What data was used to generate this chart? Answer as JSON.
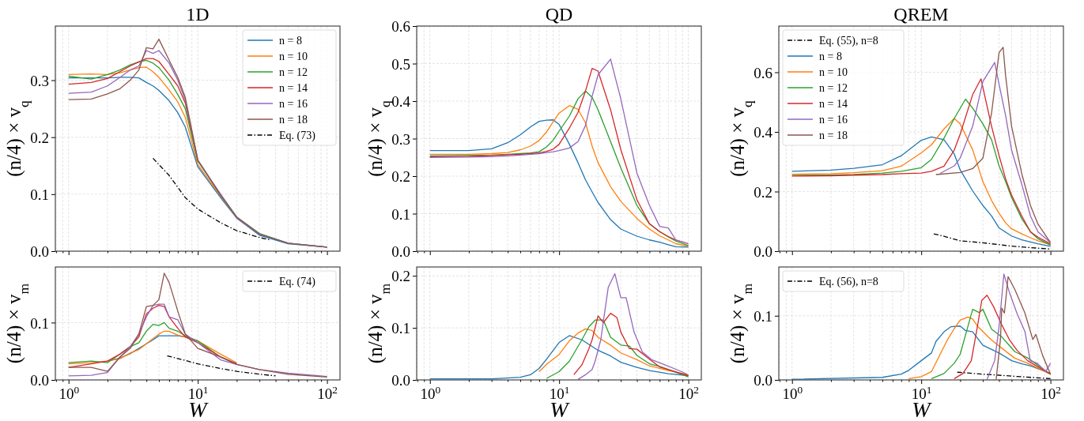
{
  "chart_data": [
    {
      "type": "line",
      "title": "1D",
      "ylabel": "(n/4) × v$_{q}$",
      "xlim": [
        0.79,
        126
      ],
      "log": "x",
      "xticks": [
        {
          "value": 1,
          "label": null
        },
        {
          "value": 10,
          "label": null
        },
        {
          "value": 100,
          "label": null
        }
      ],
      "ylim": [
        0,
        0.395
      ],
      "yticks": [
        {
          "value": 0,
          "label": "0.0"
        },
        {
          "value": 0.1,
          "label": "0.1"
        },
        {
          "value": 0.2,
          "label": "0.2"
        },
        {
          "value": 0.3,
          "label": "0.3"
        }
      ],
      "tick_labels": "y",
      "grid": true,
      "legend": "top right",
      "x": [
        1,
        1.5,
        2,
        2.5,
        3,
        3.5,
        4,
        4.5,
        5,
        6,
        7,
        8,
        10,
        15,
        20,
        30,
        50,
        100
      ],
      "series": [
        {
          "name": "n = 8",
          "color": "#1f77b4",
          "values": [
            0.304,
            0.304,
            0.304,
            0.305,
            0.305,
            0.304,
            0.296,
            0.29,
            0.282,
            0.264,
            0.243,
            0.218,
            0.148,
            0.094,
            0.058,
            0.028,
            0.013,
            0.007
          ]
        },
        {
          "name": "n = 10",
          "color": "#ff7f0e",
          "values": [
            0.31,
            0.311,
            0.31,
            0.313,
            0.318,
            0.322,
            0.323,
            0.315,
            0.305,
            0.283,
            0.262,
            0.235,
            0.152,
            0.097,
            0.059,
            null,
            null,
            null
          ]
        },
        {
          "name": "n = 12",
          "color": "#2ca02c",
          "values": [
            0.307,
            0.302,
            0.31,
            0.318,
            0.327,
            0.332,
            0.335,
            0.33,
            0.322,
            0.3,
            0.275,
            0.25,
            0.158,
            0.1,
            0.06,
            0.031,
            0.014,
            0.007
          ]
        },
        {
          "name": "n = 14",
          "color": "#d62728",
          "values": [
            0.293,
            0.296,
            0.303,
            0.315,
            0.325,
            0.332,
            0.338,
            0.338,
            0.333,
            0.31,
            0.29,
            0.26,
            0.16,
            null,
            null,
            null,
            null,
            null
          ]
        },
        {
          "name": "n = 16",
          "color": "#9467bd",
          "values": [
            0.277,
            0.279,
            0.29,
            0.305,
            0.318,
            0.325,
            0.352,
            0.347,
            0.352,
            0.33,
            0.3,
            0.265,
            0.16,
            0.1,
            0.058,
            0.03,
            0.014,
            0.007
          ]
        },
        {
          "name": "n = 18",
          "color": "#8c564b",
          "values": [
            0.266,
            0.267,
            0.276,
            0.285,
            0.3,
            0.318,
            0.357,
            0.355,
            0.372,
            0.335,
            0.305,
            0.27,
            0.16,
            0.098,
            0.06,
            0.03,
            0.014,
            0.007
          ]
        },
        {
          "name": "Eq. (73)",
          "color": "#000000",
          "line_style": "dashdot",
          "x": [
            4.5,
            6,
            8,
            10,
            15,
            20,
            30,
            36
          ],
          "values": [
            0.163,
            0.133,
            0.094,
            0.074,
            0.05,
            0.036,
            0.024,
            0.02
          ]
        }
      ]
    },
    {
      "type": "line",
      "title": "QD",
      "ylabel": "(n/4) × v$_{q}$",
      "xlim": [
        0.79,
        126
      ],
      "log": "x",
      "xticks": [
        {
          "value": 1,
          "label": null
        },
        {
          "value": 10,
          "label": null
        },
        {
          "value": 100,
          "label": null
        }
      ],
      "ylim": [
        0,
        0.6
      ],
      "yticks": [
        {
          "value": 0,
          "label": "0.0"
        },
        {
          "value": 0.1,
          "label": "0.1"
        },
        {
          "value": 0.2,
          "label": "0.2"
        },
        {
          "value": 0.3,
          "label": "0.3"
        },
        {
          "value": 0.4,
          "label": "0.4"
        },
        {
          "value": 0.5,
          "label": "0.5"
        },
        {
          "value": 0.6,
          "label": "0.6"
        }
      ],
      "tick_labels": "y",
      "grid": true,
      "x": [
        1,
        2,
        3,
        4,
        5,
        6,
        7,
        8,
        9,
        10,
        12,
        14,
        16,
        18,
        20,
        25,
        30,
        40,
        50,
        60,
        70,
        80,
        100
      ],
      "series": [
        {
          "color": "#1f77b4",
          "values": [
            0.268,
            0.268,
            0.273,
            0.289,
            0.31,
            0.331,
            0.346,
            0.349,
            0.35,
            0.338,
            0.285,
            0.236,
            0.19,
            0.158,
            0.13,
            0.084,
            0.059,
            0.04,
            0.03,
            0.024,
            0.017,
            0.012,
            0.011
          ]
        },
        {
          "color": "#ff7f0e",
          "values": [
            0.258,
            0.258,
            0.26,
            0.263,
            0.27,
            0.28,
            0.295,
            0.318,
            0.345,
            0.368,
            0.388,
            0.378,
            0.342,
            0.28,
            0.236,
            0.172,
            0.133,
            0.087,
            0.059,
            0.041,
            0.03,
            0.02,
            0.013
          ]
        },
        {
          "color": "#2ca02c",
          "values": [
            0.254,
            0.255,
            0.256,
            0.258,
            0.26,
            0.262,
            0.265,
            0.278,
            0.296,
            0.32,
            0.36,
            0.406,
            0.427,
            0.41,
            0.377,
            0.292,
            0.222,
            0.122,
            0.073,
            0.052,
            0.038,
            0.027,
            0.015
          ]
        },
        {
          "color": "#d62728",
          "values": [
            0.252,
            0.253,
            0.255,
            0.257,
            0.258,
            0.26,
            0.262,
            0.266,
            0.272,
            0.285,
            0.328,
            0.37,
            0.427,
            0.487,
            0.48,
            0.377,
            0.271,
            0.137,
            0.073,
            0.052,
            0.039,
            0.03,
            0.02
          ]
        },
        {
          "color": "#9467bd",
          "values": [
            0.25,
            0.251,
            0.252,
            0.254,
            0.256,
            0.258,
            0.26,
            0.263,
            0.265,
            0.268,
            0.275,
            0.292,
            0.335,
            0.413,
            0.47,
            0.512,
            0.406,
            0.208,
            0.122,
            0.066,
            0.062,
            0.03,
            0.02
          ]
        }
      ]
    },
    {
      "type": "line",
      "title": "QREM",
      "ylabel": "(n/4) × v$_{q}$",
      "xlim": [
        0.79,
        126
      ],
      "log": "x",
      "xticks": [
        {
          "value": 1,
          "label": null
        },
        {
          "value": 10,
          "label": null
        },
        {
          "value": 100,
          "label": null
        }
      ],
      "ylim": [
        0,
        0.755
      ],
      "yticks": [
        {
          "value": 0,
          "label": "0.0"
        },
        {
          "value": 0.2,
          "label": "0.2"
        },
        {
          "value": 0.4,
          "label": "0.4"
        },
        {
          "value": 0.6,
          "label": "0.6"
        }
      ],
      "tick_labels": "y",
      "grid": true,
      "legend": "top left",
      "series": [
        {
          "name": "Eq. (55), n=8",
          "color": "#000000",
          "line_style": "dashdot",
          "x": [
            12.5,
            15,
            20,
            30,
            50,
            70,
            100
          ],
          "values": [
            0.058,
            0.05,
            0.035,
            0.028,
            0.017,
            0.012,
            0.007
          ]
        },
        {
          "name": "n = 8",
          "color": "#1f77b4",
          "x": [
            1,
            2,
            3,
            5,
            7,
            10,
            12,
            15,
            18,
            20,
            25,
            30,
            35,
            40,
            50,
            60,
            70,
            80,
            100
          ],
          "values": [
            0.268,
            0.272,
            0.278,
            0.29,
            0.32,
            0.372,
            0.383,
            0.374,
            0.326,
            0.273,
            0.202,
            0.153,
            0.118,
            0.078,
            0.051,
            0.038,
            0.031,
            0.025,
            0.016
          ]
        },
        {
          "name": "n = 10",
          "color": "#ff7f0e",
          "x": [
            1,
            2,
            3,
            5,
            7,
            10,
            12,
            15,
            18,
            20,
            25,
            30,
            35,
            40,
            45,
            50,
            60,
            70,
            80,
            100
          ],
          "values": [
            0.258,
            0.26,
            0.263,
            0.27,
            0.285,
            0.33,
            0.357,
            0.41,
            0.445,
            0.427,
            0.34,
            0.233,
            0.17,
            0.127,
            0.095,
            0.075,
            0.058,
            0.045,
            0.035,
            0.022
          ]
        },
        {
          "name": "n = 12",
          "color": "#2ca02c",
          "x": [
            1,
            2,
            3,
            5,
            7,
            10,
            12,
            15,
            18,
            22,
            25,
            30,
            35,
            40,
            45,
            50,
            60,
            70,
            80,
            100
          ],
          "values": [
            0.254,
            0.255,
            0.257,
            0.262,
            0.268,
            0.28,
            0.308,
            0.379,
            0.445,
            0.51,
            0.48,
            0.427,
            0.374,
            0.286,
            0.233,
            0.18,
            0.109,
            0.065,
            0.042,
            0.02
          ]
        },
        {
          "name": "n = 14",
          "color": "#d62728",
          "x": [
            1,
            2,
            3,
            5,
            7,
            10,
            12,
            15,
            18,
            20,
            25,
            29,
            35,
            40,
            45,
            50,
            60,
            70,
            80,
            100
          ],
          "values": [
            0.252,
            0.253,
            0.255,
            0.257,
            0.26,
            0.262,
            0.268,
            0.285,
            0.339,
            0.392,
            0.525,
            0.578,
            0.419,
            0.321,
            0.242,
            0.188,
            0.118,
            0.065,
            0.047,
            0.025
          ]
        },
        {
          "name": "n = 16",
          "color": "#9467bd",
          "x": [
            14,
            18,
            20,
            25,
            30,
            37,
            40,
            45,
            50,
            60,
            70,
            80,
            100
          ],
          "values": [
            0.261,
            0.286,
            0.312,
            0.419,
            0.569,
            0.633,
            0.56,
            0.454,
            0.339,
            0.224,
            0.118,
            0.065,
            0.029
          ]
        },
        {
          "name": "n = 18",
          "color": "#8c564b",
          "x": [
            13,
            20,
            25,
            30,
            35,
            40,
            43,
            45,
            50,
            60,
            70,
            80,
            100
          ],
          "values": [
            0.257,
            0.264,
            0.277,
            0.312,
            0.463,
            0.666,
            0.684,
            0.587,
            0.419,
            0.259,
            0.153,
            0.091,
            0.029
          ]
        }
      ]
    },
    {
      "type": "line",
      "xlabel": "W",
      "ylabel": "(n/4) × v$_{m}$",
      "xlim": [
        0.79,
        126
      ],
      "log": "x",
      "xticks": [
        {
          "value": 1,
          "label": "10$^{0}$"
        },
        {
          "value": 10,
          "label": "10$^{1}$"
        },
        {
          "value": 100,
          "label": "10$^{2}$"
        }
      ],
      "ylim": [
        0,
        0.197
      ],
      "yticks": [
        {
          "value": 0,
          "label": "0.0"
        },
        {
          "value": 0.1,
          "label": "0.1"
        }
      ],
      "grid": true,
      "legend": "top right",
      "x": [
        1,
        1.5,
        2,
        2.5,
        3,
        3.5,
        4,
        4.5,
        5,
        5.5,
        6,
        7,
        8,
        10,
        15,
        20,
        30,
        50,
        100
      ],
      "series": [
        {
          "color": "#1f77b4",
          "values": [
            null,
            null,
            0.033,
            0.038,
            0.046,
            0.055,
            0.063,
            0.07,
            0.077,
            0.077,
            0.077,
            0.077,
            0.075,
            null,
            null,
            null,
            null,
            null,
            null
          ]
        },
        {
          "color": "#ff7f0e",
          "values": [
            0.028,
            0.03,
            0.033,
            0.037,
            0.047,
            0.053,
            0.063,
            0.072,
            0.08,
            0.085,
            0.085,
            0.078,
            0.075,
            0.068,
            0.045,
            0.03,
            null,
            null,
            null
          ]
        },
        {
          "color": "#2ca02c",
          "values": [
            0.03,
            0.033,
            0.03,
            0.045,
            0.058,
            0.065,
            0.085,
            0.097,
            0.095,
            0.1,
            0.09,
            0.085,
            0.077,
            0.068,
            0.04,
            0.028,
            null,
            null,
            null
          ]
        },
        {
          "color": "#d62728",
          "values": [
            0.022,
            0.028,
            0.033,
            0.045,
            0.058,
            0.075,
            0.115,
            0.125,
            0.13,
            0.128,
            0.11,
            0.09,
            0.075,
            0.065,
            0.04,
            0.028,
            null,
            null,
            null
          ]
        },
        {
          "color": "#9467bd",
          "values": [
            0.007,
            0.008,
            0.013,
            0.04,
            0.058,
            0.08,
            0.11,
            0.13,
            0.132,
            0.132,
            0.11,
            0.105,
            0.08,
            0.065,
            0.035,
            0.027,
            0.018,
            0.012,
            0.006
          ]
        },
        {
          "color": "#8c564b",
          "values": [
            0.022,
            0.022,
            0.015,
            0.04,
            0.055,
            0.08,
            0.128,
            0.13,
            0.14,
            0.186,
            0.17,
            0.12,
            0.08,
            0.055,
            0.04,
            0.027,
            0.018,
            0.01,
            0.005
          ]
        },
        {
          "name": "Eq. (74)",
          "color": "#000000",
          "line_style": "dashdot",
          "x": [
            5.8,
            8,
            10,
            15,
            20,
            30,
            40
          ],
          "values": [
            0.042,
            0.034,
            0.028,
            0.02,
            0.015,
            0.01,
            0.007
          ]
        }
      ]
    },
    {
      "type": "line",
      "xlabel": "W",
      "ylabel": "(n/4) × v$_{m}$",
      "xlim": [
        0.79,
        126
      ],
      "log": "x",
      "xticks": [
        {
          "value": 1,
          "label": "10$^{0}$"
        },
        {
          "value": 10,
          "label": "10$^{1}$"
        },
        {
          "value": 100,
          "label": "10$^{2}$"
        }
      ],
      "ylim": [
        0,
        0.217
      ],
      "yticks": [
        {
          "value": 0,
          "label": "0.0"
        },
        {
          "value": 0.1,
          "label": "0.1"
        },
        {
          "value": 0.2,
          "label": "0.2"
        }
      ],
      "grid": true,
      "series": [
        {
          "color": "#1f77b4",
          "x": [
            1,
            3,
            5,
            6,
            7,
            8,
            10,
            12,
            15,
            20,
            25,
            30,
            40,
            50,
            70,
            100
          ],
          "values": [
            0.002,
            0.002,
            0.005,
            0.01,
            0.022,
            0.04,
            0.072,
            0.085,
            0.077,
            0.057,
            0.046,
            0.034,
            0.024,
            0.018,
            0.012,
            0.008
          ]
        },
        {
          "color": "#ff7f0e",
          "x": [
            7,
            8,
            10,
            12,
            14,
            16,
            18,
            20,
            25,
            30,
            40,
            50,
            70,
            100
          ],
          "values": [
            0.016,
            0.03,
            0.049,
            0.075,
            0.09,
            0.098,
            0.095,
            0.082,
            0.067,
            0.052,
            0.039,
            0.027,
            0.018,
            0.01
          ]
        },
        {
          "color": "#2ca02c",
          "x": [
            8,
            10,
            12,
            15,
            17,
            19,
            22,
            25,
            30,
            35,
            40,
            50,
            60,
            100
          ],
          "values": [
            0.003,
            0.016,
            0.036,
            0.077,
            0.102,
            0.115,
            0.115,
            0.082,
            0.067,
            0.065,
            0.047,
            0.031,
            0.026,
            0.006
          ]
        },
        {
          "color": "#d62728",
          "x": [
            13,
            15,
            17,
            18,
            20,
            22,
            25,
            28,
            30,
            35,
            40,
            50,
            60,
            70,
            100
          ],
          "values": [
            0.01,
            0.029,
            0.06,
            0.077,
            0.123,
            0.11,
            0.128,
            0.12,
            0.092,
            0.06,
            0.059,
            0.04,
            0.025,
            0.02,
            0.008
          ]
        },
        {
          "color": "#9467bd",
          "x": [
            14,
            16,
            18,
            19,
            21,
            24,
            27,
            30,
            33,
            38,
            44,
            52,
            63,
            83,
            98
          ],
          "values": [
            0.001,
            0.01,
            0.02,
            0.036,
            0.077,
            0.178,
            0.204,
            0.158,
            0.158,
            0.092,
            0.054,
            0.039,
            0.031,
            0.019,
            0.011
          ]
        }
      ]
    },
    {
      "type": "line",
      "xlabel": "W",
      "ylabel": "(n/4) × v$_{m}$",
      "xlim": [
        0.79,
        126
      ],
      "log": "x",
      "xticks": [
        {
          "value": 1,
          "label": "10$^{0}$"
        },
        {
          "value": 10,
          "label": "10$^{1}$"
        },
        {
          "value": 100,
          "label": "10$^{2}$"
        }
      ],
      "ylim": [
        0,
        0.176
      ],
      "yticks": [
        {
          "value": 0,
          "label": "0.0"
        },
        {
          "value": 0.1,
          "label": "0.1"
        }
      ],
      "grid": true,
      "legend": "top left",
      "series": [
        {
          "name": "Eq. (56), n=8",
          "color": "#000000",
          "line_style": "dashdot",
          "x": [
            19,
            30,
            50,
            100
          ],
          "values": [
            0.012,
            0.009,
            0.006,
            0.002
          ]
        },
        {
          "color": "#1f77b4",
          "x": [
            1,
            5,
            7,
            8,
            10,
            12,
            13,
            15,
            17,
            20,
            22,
            25,
            30,
            40,
            50,
            60,
            70,
            100
          ],
          "values": [
            0.001,
            0.004,
            0.009,
            0.015,
            0.03,
            0.042,
            0.06,
            0.075,
            0.083,
            0.084,
            0.077,
            0.075,
            0.054,
            0.042,
            0.03,
            0.025,
            0.022,
            0.01
          ]
        },
        {
          "color": "#ff7f0e",
          "x": [
            8,
            10,
            12,
            14,
            16,
            18,
            20,
            23,
            25,
            27.4,
            34.6,
            41.7,
            52.7,
            66.6,
            100
          ],
          "values": [
            0.002,
            0.005,
            0.013,
            0.04,
            0.063,
            0.08,
            0.093,
            0.098,
            0.095,
            0.083,
            0.063,
            0.05,
            0.034,
            0.026,
            0.009
          ]
        },
        {
          "color": "#2ca02c",
          "x": [
            12,
            15,
            18,
            20,
            22,
            25,
            28,
            30,
            35,
            42,
            53,
            67,
            100
          ],
          "values": [
            0.002,
            0.01,
            0.026,
            0.04,
            0.07,
            0.11,
            0.105,
            0.11,
            0.079,
            0.067,
            0.044,
            0.034,
            0.009
          ]
        },
        {
          "color": "#d62728",
          "x": [
            18,
            21,
            24.4,
            27.4,
            29.4,
            32.3,
            36.3,
            41.7,
            48,
            55.2,
            66.6,
            100
          ],
          "values": [
            0.002,
            0.01,
            0.03,
            0.087,
            0.124,
            0.132,
            0.114,
            0.087,
            0.063,
            0.046,
            0.03,
            0.009
          ]
        },
        {
          "color": "#9467bd",
          "x": [
            32.3,
            37,
            40,
            43.6,
            48,
            55,
            63.5,
            69.7,
            79,
            92,
            100
          ],
          "values": [
            0.001,
            0.03,
            0.083,
            0.165,
            0.137,
            0.104,
            0.075,
            0.03,
            0.026,
            0.013,
            0.026
          ]
        },
        {
          "color": "#8c564b",
          "x": [
            38,
            41,
            42,
            44,
            47,
            53,
            63.5,
            73,
            77,
            87,
            100
          ],
          "values": [
            0.001,
            0.063,
            0.112,
            0.104,
            0.161,
            0.141,
            0.104,
            0.063,
            0.071,
            0.038,
            0.009
          ]
        }
      ]
    }
  ]
}
